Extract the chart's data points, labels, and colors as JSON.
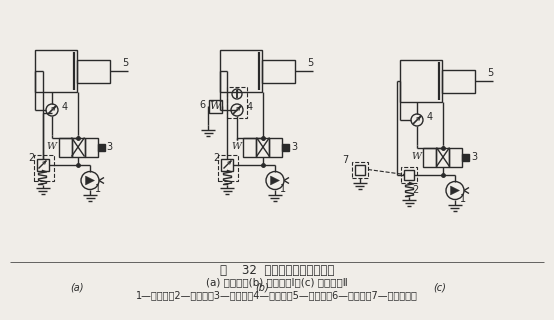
{
  "title_line1": "图    32  进口节流调速回路示例",
  "title_line2": "(a) 改进前；(b) 改进方案Ⅰ；(c) 改进方案Ⅱ",
  "title_line3": "1—液压泵；2—溢流阀；3—换向鄀；4—节流鄀；5—液压缸；6—减压鄀；7—远程调压鄀",
  "bg_color": "#f0ede8",
  "line_color": "#2a2a2a",
  "lw": 1.0
}
